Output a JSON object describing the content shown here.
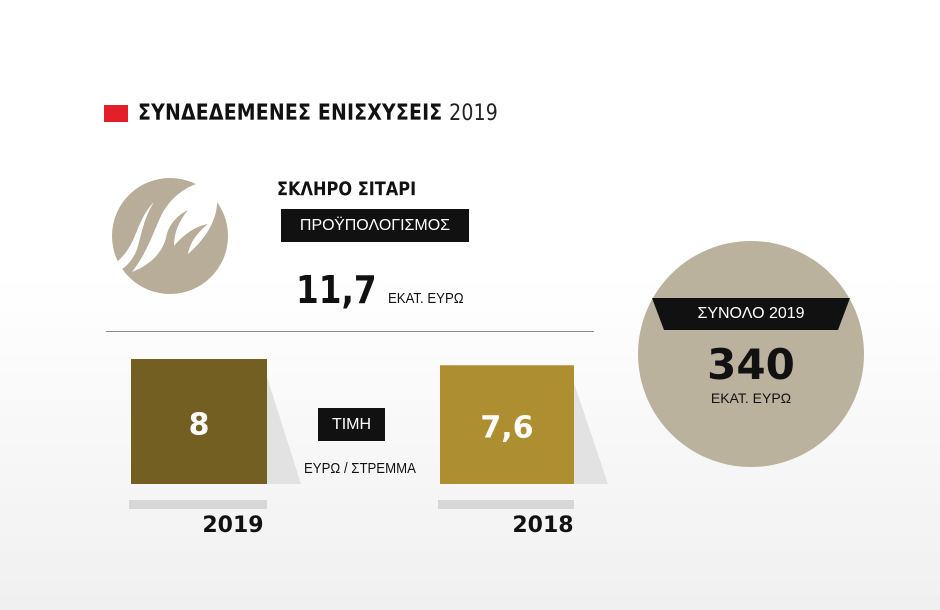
{
  "header": {
    "title": "ΣΥΝΔΕΔΕΜΕΝΕΣ ΕΝΙΣΧΥΣΕΙΣ",
    "year": "2019"
  },
  "logo": {
    "icon": "wheat-leaf-icon",
    "color": "#b7ad98"
  },
  "crop": {
    "name": "ΣΚΛΗΡΟ ΣΙΤΑΡΙ",
    "budget_label": "ΠΡΟΫΠΟΛΟΓΙΣΜΟΣ",
    "budget_value": "11,7",
    "budget_unit": "ΕΚΑΤ. ΕΥΡΩ"
  },
  "price": {
    "label": "ΤΙΜΗ",
    "unit": "ΕΥΡΩ / ΣΤΡΕΜΜΑ"
  },
  "total": {
    "label": "ΣΥΝΟΛΟ 2019",
    "value": "340",
    "unit": "ΕΚΑΤ. ΕΥΡΩ"
  },
  "chart_data": {
    "type": "bar",
    "categories": [
      "2019",
      "2018"
    ],
    "values": [
      8,
      7.6
    ],
    "value_labels": [
      "8",
      "7,6"
    ],
    "colors": [
      "#735f21",
      "#ad8f32"
    ],
    "ylabel": "ΕΥΡΩ / ΣΤΡΕΜΜΑ",
    "grid": false
  }
}
